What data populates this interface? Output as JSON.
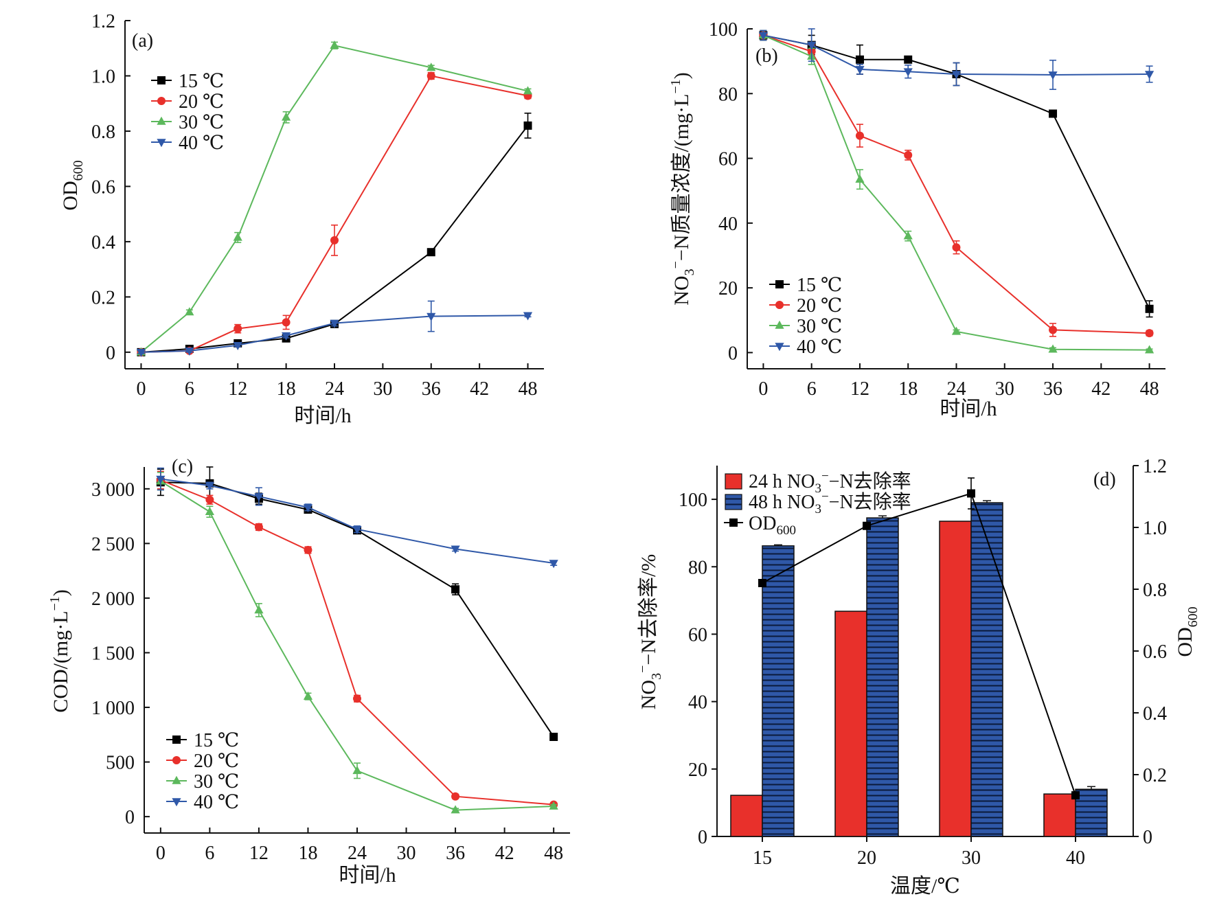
{
  "chart_data": [
    {
      "type": "line",
      "panel_label": "(a)",
      "xlabel": "时间/h",
      "ylabel_main": "OD",
      "ylabel_sub": "600",
      "x": [
        0,
        6,
        12,
        18,
        24,
        36,
        48
      ],
      "x_ticks": [
        0,
        6,
        12,
        18,
        24,
        30,
        36,
        42,
        48
      ],
      "x_tick_labels": [
        "0",
        "6",
        "12",
        "18",
        "24",
        "30",
        "36",
        "42",
        "48"
      ],
      "xlim": [
        -2,
        50
      ],
      "y_ticks": [
        0,
        0.2,
        0.4,
        0.6,
        0.8,
        1.0,
        1.2
      ],
      "y_tick_labels": [
        "0",
        "0.2",
        "0.4",
        "0.6",
        "0.8",
        "1.0",
        "1.2"
      ],
      "ylim": [
        -0.06,
        1.2
      ],
      "legend_position": "upper-left",
      "series": [
        {
          "name": "15 ℃",
          "color": "#000000",
          "marker": "square",
          "values": [
            0,
            0.012,
            0.032,
            0.05,
            0.102,
            0.362,
            0.82
          ],
          "errors": [
            0.005,
            0.01,
            0.008,
            0.008,
            0.01,
            0.01,
            0.045
          ]
        },
        {
          "name": "20 ℃",
          "color": "#e8302b",
          "marker": "circle",
          "values": [
            0,
            0.005,
            0.085,
            0.108,
            0.405,
            1.0,
            0.928
          ],
          "errors": [
            0.005,
            0.006,
            0.015,
            0.025,
            0.055,
            0.012,
            0.01
          ]
        },
        {
          "name": "30 ℃",
          "color": "#5cb85c",
          "marker": "triangle-up",
          "values": [
            0,
            0.145,
            0.415,
            0.85,
            1.11,
            1.03,
            0.945
          ],
          "errors": [
            0.005,
            0.008,
            0.018,
            0.02,
            0.012,
            0.008,
            0.008
          ]
        },
        {
          "name": "40 ℃",
          "color": "#2f58a8",
          "marker": "triangle-down",
          "values": [
            0,
            0.005,
            0.025,
            0.06,
            0.105,
            0.13,
            0.133
          ],
          "errors": [
            0.005,
            0.005,
            0.005,
            0.008,
            0.01,
            0.055,
            0.005
          ]
        }
      ]
    },
    {
      "type": "line",
      "panel_label": "(b)",
      "xlabel": "时间/h",
      "ylabel_parts": [
        "NO",
        "3",
        "−",
        "−N质量浓度/(mg·L",
        "−1",
        ")"
      ],
      "x": [
        0,
        6,
        12,
        18,
        24,
        36,
        48
      ],
      "x_ticks": [
        0,
        6,
        12,
        18,
        24,
        30,
        36,
        42,
        48
      ],
      "x_tick_labels": [
        "0",
        "6",
        "12",
        "18",
        "24",
        "30",
        "36",
        "42",
        "48"
      ],
      "xlim": [
        -2,
        50
      ],
      "y_ticks": [
        0,
        20,
        40,
        60,
        80,
        100
      ],
      "y_tick_labels": [
        "0",
        "20",
        "40",
        "60",
        "80",
        "100"
      ],
      "ylim": [
        -5,
        100
      ],
      "legend_position": "lower-left",
      "series": [
        {
          "name": "15 ℃",
          "color": "#000000",
          "marker": "square",
          "values": [
            98,
            95,
            90.5,
            90.5,
            86,
            73.8,
            13.5
          ],
          "errors": [
            1.5,
            3,
            4.5,
            1,
            3.5,
            1,
            2.5
          ]
        },
        {
          "name": "20 ℃",
          "color": "#e8302b",
          "marker": "circle",
          "values": [
            98,
            93,
            67,
            61,
            32.5,
            7,
            6
          ],
          "errors": [
            1.5,
            2,
            3.5,
            1.5,
            2,
            2,
            0.8
          ]
        },
        {
          "name": "30 ℃",
          "color": "#5cb85c",
          "marker": "triangle-up",
          "values": [
            98,
            91.5,
            53.5,
            36,
            6.5,
            1,
            0.8
          ],
          "errors": [
            1.5,
            2.5,
            3,
            1.5,
            0.5,
            0.5,
            0.3
          ]
        },
        {
          "name": "40 ℃",
          "color": "#2f58a8",
          "marker": "triangle-down",
          "values": [
            98,
            95,
            87.5,
            86.8,
            86,
            85.8,
            86
          ],
          "errors": [
            1.5,
            5,
            1.5,
            2,
            3.5,
            4.5,
            2.5
          ]
        }
      ]
    },
    {
      "type": "line",
      "panel_label": "(c)",
      "xlabel": "时间/h",
      "ylabel_parts": [
        "COD/(mg·L",
        "−1",
        ")"
      ],
      "x": [
        0,
        6,
        12,
        18,
        24,
        36,
        48
      ],
      "x_ticks": [
        0,
        6,
        12,
        18,
        24,
        30,
        36,
        42,
        48
      ],
      "x_tick_labels": [
        "0",
        "6",
        "12",
        "18",
        "24",
        "30",
        "36",
        "42",
        "48"
      ],
      "xlim": [
        -2,
        50
      ],
      "y_ticks": [
        0,
        500,
        1000,
        1500,
        2000,
        2500,
        3000
      ],
      "y_tick_labels": [
        "0",
        "500",
        "1 000",
        "1 500",
        "2 000",
        "2 500",
        "3 000"
      ],
      "ylim": [
        -150,
        3200
      ],
      "legend_position": "lower-left",
      "series": [
        {
          "name": "15 ℃",
          "color": "#000000",
          "marker": "square",
          "values": [
            3060,
            3050,
            2910,
            2810,
            2620,
            2080,
            730
          ],
          "errors": [
            120,
            150,
            50,
            30,
            30,
            50,
            30
          ]
        },
        {
          "name": "20 ℃",
          "color": "#e8302b",
          "marker": "circle",
          "values": [
            3080,
            2900,
            2650,
            2440,
            1080,
            185,
            110
          ],
          "errors": [
            80,
            40,
            30,
            30,
            30,
            20,
            15
          ]
        },
        {
          "name": "30 ℃",
          "color": "#5cb85c",
          "marker": "triangle-up",
          "values": [
            3070,
            2790,
            1890,
            1100,
            420,
            60,
            95
          ],
          "errors": [
            80,
            50,
            60,
            30,
            70,
            15,
            15
          ]
        },
        {
          "name": "40 ℃",
          "color": "#2f58a8",
          "marker": "triangle-down",
          "values": [
            3090,
            3030,
            2930,
            2830,
            2630,
            2450,
            2320
          ],
          "errors": [
            100,
            30,
            80,
            30,
            30,
            20,
            20
          ]
        }
      ]
    },
    {
      "type": "bar",
      "panel_label": "(d)",
      "xlabel": "温度/℃",
      "categories": [
        "15",
        "20",
        "30",
        "40"
      ],
      "ylabel_left_parts": [
        "NO",
        "3",
        "−",
        "−N去除率/%"
      ],
      "ylabel_right_main": "OD",
      "ylabel_right_sub": "600",
      "y_ticks": [
        0,
        20,
        40,
        60,
        80,
        100
      ],
      "y_tick_labels": [
        "0",
        "20",
        "40",
        "60",
        "80",
        "100"
      ],
      "ylim": [
        0,
        110
      ],
      "y2_ticks": [
        0,
        0.2,
        0.4,
        0.6,
        0.8,
        1.0,
        1.2
      ],
      "y2_tick_labels": [
        "0",
        "0.2",
        "0.4",
        "0.6",
        "0.8",
        "1.0",
        "1.2"
      ],
      "y2lim": [
        0,
        1.2
      ],
      "legend_position": "upper-left",
      "bar_series": [
        {
          "name_parts": [
            "24 h NO",
            "3",
            "−",
            "−N去除率"
          ],
          "color": "#e8302b",
          "values": [
            12.2,
            66.8,
            93.5,
            12.6
          ]
        },
        {
          "name_parts": [
            "48 h NO",
            "3",
            "−",
            "−N去除率"
          ],
          "color": "#2f58a8",
          "hatch": "horizontal",
          "values": [
            86.2,
            94.5,
            99,
            14
          ],
          "errors": [
            0.3,
            0.6,
            0.6,
            0.8
          ]
        }
      ],
      "line_series": {
        "name_main": "OD",
        "name_sub": "600",
        "color": "#000000",
        "marker": "square",
        "values": [
          0.82,
          1.005,
          1.11,
          0.133
        ],
        "errors": [
          0.01,
          0.01,
          0.05,
          0.01
        ]
      }
    }
  ]
}
